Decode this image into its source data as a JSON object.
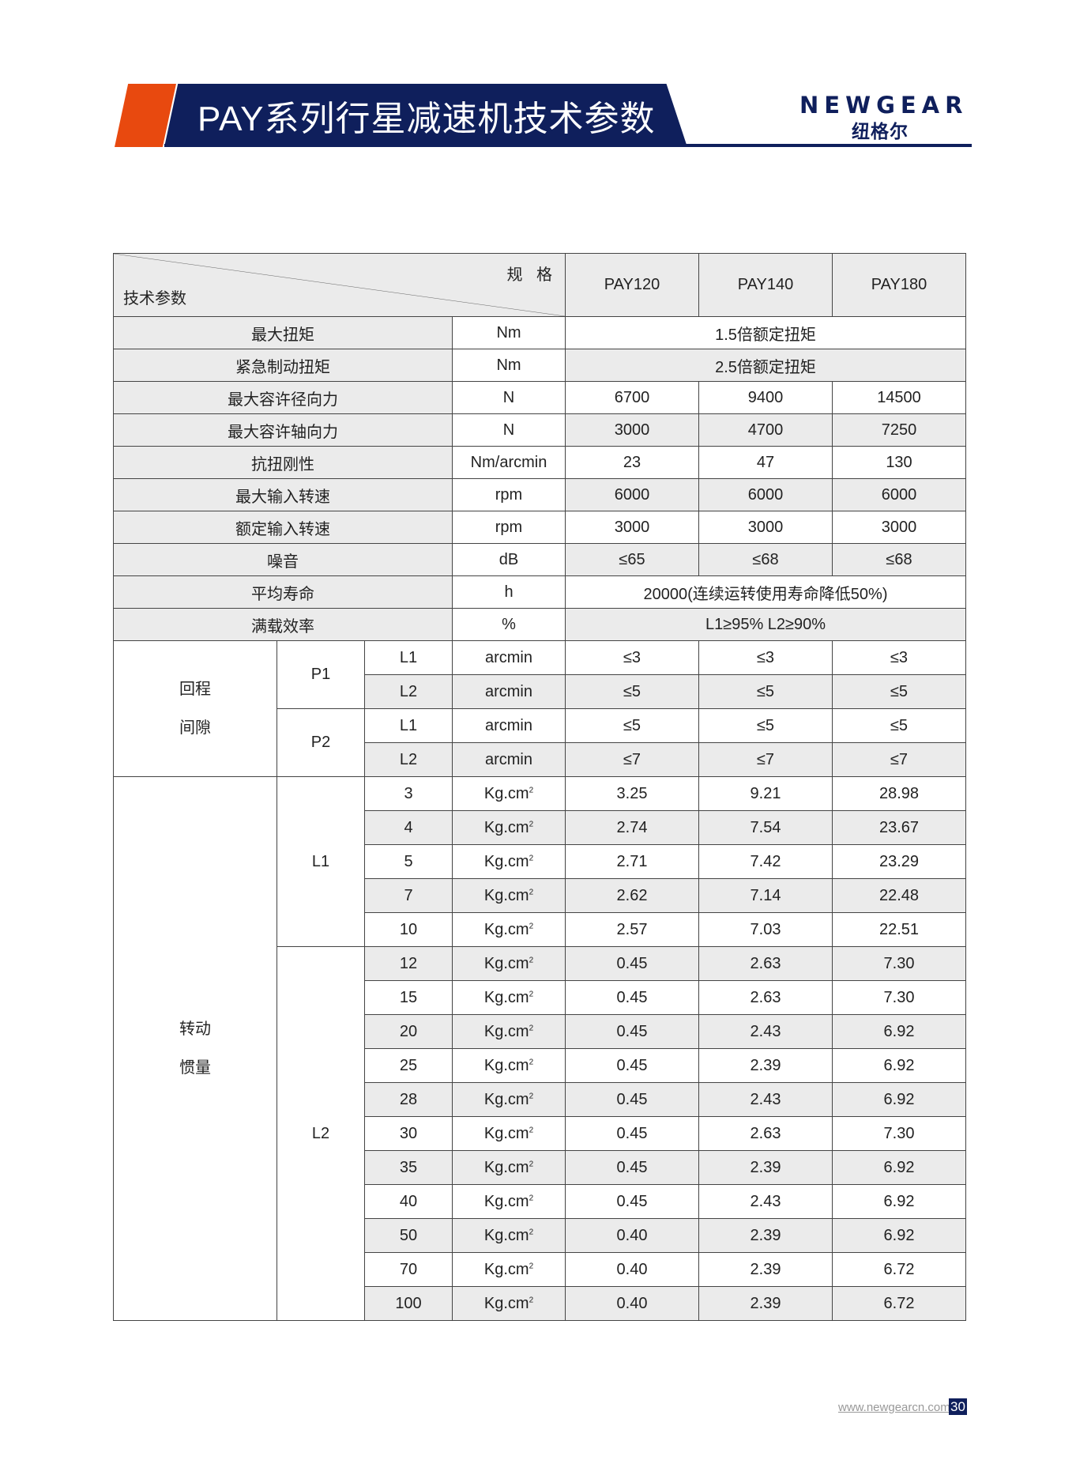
{
  "header": {
    "title": "PAY系列行星减速机技术参数",
    "logo_en": "NEWGEAR",
    "logo_cn": "纽格尔",
    "brand_color": "#0f1f5c",
    "accent_color": "#e8490f"
  },
  "table": {
    "corner_top": "规 格",
    "corner_bottom": "技术参数",
    "models": [
      "PAY120",
      "PAY140",
      "PAY180"
    ],
    "rows": [
      {
        "label": "最大扭矩",
        "unit": "Nm",
        "span": "1.5倍额定扭矩"
      },
      {
        "label": "紧急制动扭矩",
        "unit": "Nm",
        "span": "2.5倍额定扭矩"
      },
      {
        "label": "最大容许径向力",
        "unit": "N",
        "values": [
          "6700",
          "9400",
          "14500"
        ]
      },
      {
        "label": "最大容许轴向力",
        "unit": "N",
        "values": [
          "3000",
          "4700",
          "7250"
        ]
      },
      {
        "label": "抗扭刚性",
        "unit": "Nm/arcmin",
        "values": [
          "23",
          "47",
          "130"
        ]
      },
      {
        "label": "最大输入转速",
        "unit": "rpm",
        "values": [
          "6000",
          "6000",
          "6000"
        ]
      },
      {
        "label": "额定输入转速",
        "unit": "rpm",
        "values": [
          "3000",
          "3000",
          "3000"
        ]
      },
      {
        "label": "噪音",
        "unit": "dB",
        "values": [
          "≤65",
          "≤68",
          "≤68"
        ]
      },
      {
        "label": "平均寿命",
        "unit": "h",
        "span": "20000(连续运转使用寿命降低50%)"
      },
      {
        "label": "满载效率",
        "unit": "%",
        "span": "L1≥95%  L2≥90%"
      }
    ],
    "backlash": {
      "label": [
        "回程",
        "间隙"
      ],
      "groups": [
        {
          "name": "P1",
          "rows": [
            {
              "stage": "L1",
              "unit": "arcmin",
              "values": [
                "≤3",
                "≤3",
                "≤3"
              ]
            },
            {
              "stage": "L2",
              "unit": "arcmin",
              "values": [
                "≤5",
                "≤5",
                "≤5"
              ]
            }
          ]
        },
        {
          "name": "P2",
          "rows": [
            {
              "stage": "L1",
              "unit": "arcmin",
              "values": [
                "≤5",
                "≤5",
                "≤5"
              ]
            },
            {
              "stage": "L2",
              "unit": "arcmin",
              "values": [
                "≤7",
                "≤7",
                "≤7"
              ]
            }
          ]
        }
      ]
    },
    "inertia": {
      "label": [
        "转动",
        "惯量"
      ],
      "unit": "Kg.cm",
      "unit_sup": "2",
      "groups": [
        {
          "name": "L1",
          "rows": [
            {
              "ratio": "3",
              "values": [
                "3.25",
                "9.21",
                "28.98"
              ]
            },
            {
              "ratio": "4",
              "values": [
                "2.74",
                "7.54",
                "23.67"
              ]
            },
            {
              "ratio": "5",
              "values": [
                "2.71",
                "7.42",
                "23.29"
              ]
            },
            {
              "ratio": "7",
              "values": [
                "2.62",
                "7.14",
                "22.48"
              ]
            },
            {
              "ratio": "10",
              "values": [
                "2.57",
                "7.03",
                "22.51"
              ]
            }
          ]
        },
        {
          "name": "L2",
          "rows": [
            {
              "ratio": "12",
              "values": [
                "0.45",
                "2.63",
                "7.30"
              ]
            },
            {
              "ratio": "15",
              "values": [
                "0.45",
                "2.63",
                "7.30"
              ]
            },
            {
              "ratio": "20",
              "values": [
                "0.45",
                "2.43",
                "6.92"
              ]
            },
            {
              "ratio": "25",
              "values": [
                "0.45",
                "2.39",
                "6.92"
              ]
            },
            {
              "ratio": "28",
              "values": [
                "0.45",
                "2.43",
                "6.92"
              ]
            },
            {
              "ratio": "30",
              "values": [
                "0.45",
                "2.63",
                "7.30"
              ]
            },
            {
              "ratio": "35",
              "values": [
                "0.45",
                "2.39",
                "6.92"
              ]
            },
            {
              "ratio": "40",
              "values": [
                "0.45",
                "2.43",
                "6.92"
              ]
            },
            {
              "ratio": "50",
              "values": [
                "0.40",
                "2.39",
                "6.92"
              ]
            },
            {
              "ratio": "70",
              "values": [
                "0.40",
                "2.39",
                "6.72"
              ]
            },
            {
              "ratio": "100",
              "values": [
                "0.40",
                "2.39",
                "6.72"
              ]
            }
          ]
        }
      ]
    }
  },
  "footer": {
    "url": "www.newgearcn.com",
    "page": "30"
  }
}
